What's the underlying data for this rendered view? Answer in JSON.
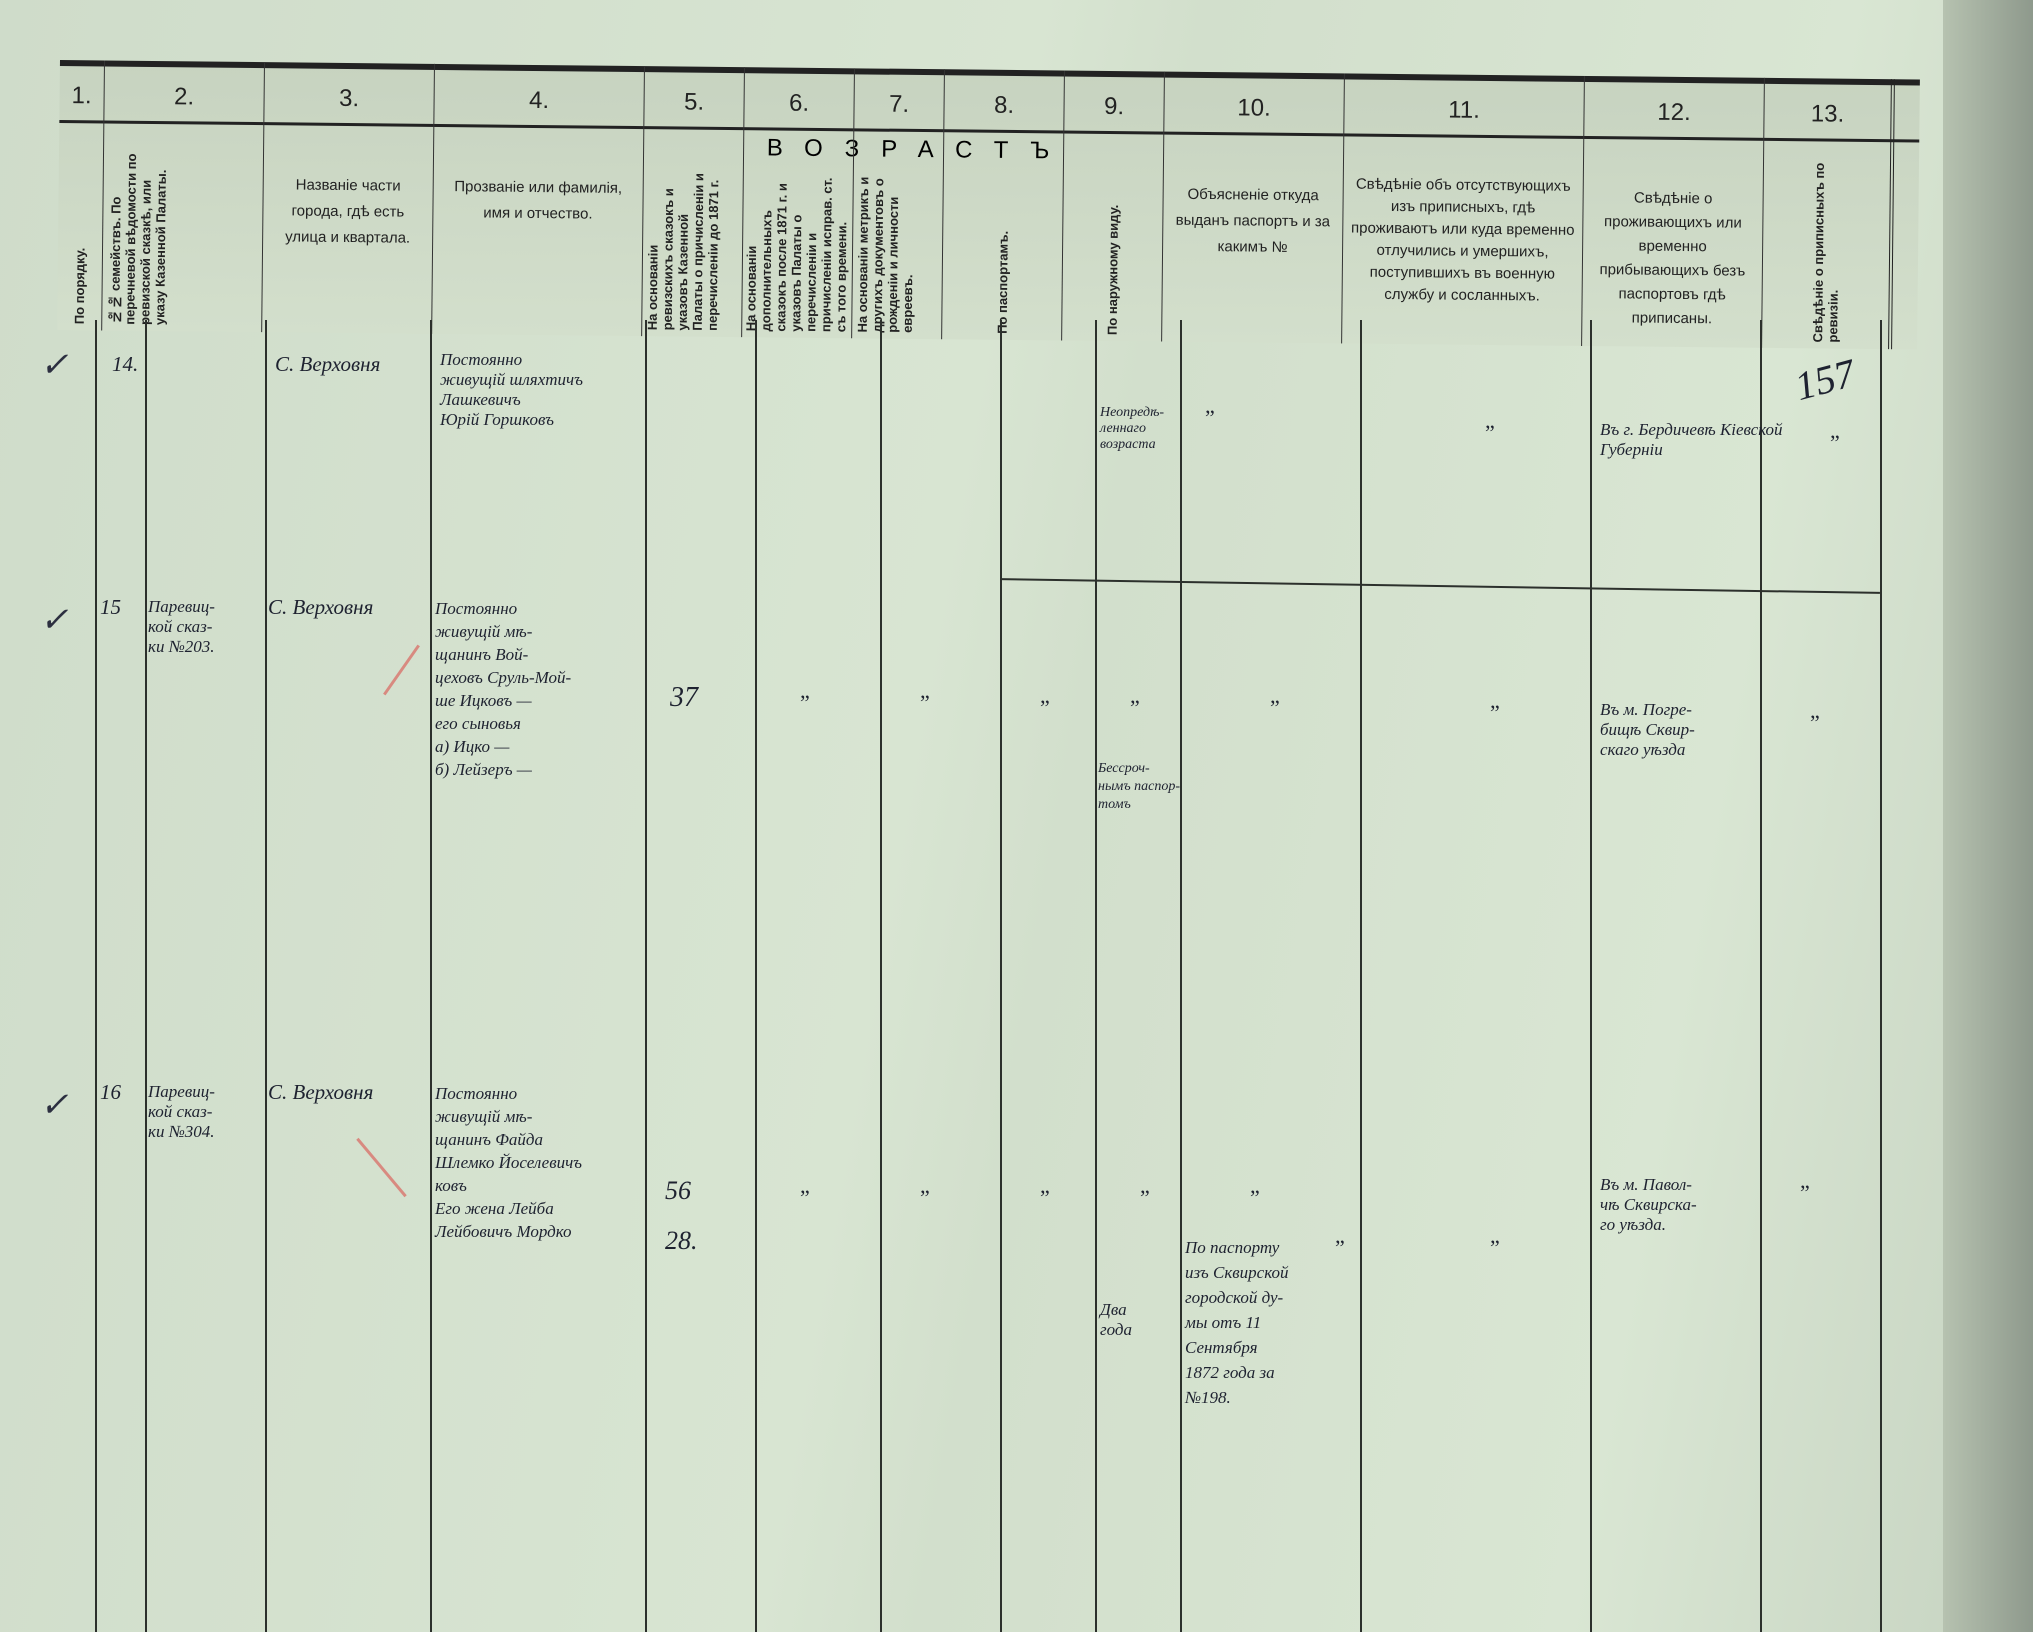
{
  "header": {
    "age_group_title": "ВОЗРАСТЪ",
    "columns": [
      {
        "num": "1.",
        "text": "По порядку."
      },
      {
        "num": "2.",
        "text": "№№ семействъ. По перечневой вѣдомости по ревизской сказкѣ, или указу Казенной Палаты."
      },
      {
        "num": "3.",
        "text": "Названіе части города, гдѣ есть улица и квартала."
      },
      {
        "num": "4.",
        "text": "Прозваніе или фамилія, имя и отчество."
      },
      {
        "num": "5.",
        "text": "На основаніи ревизскихъ сказокъ и указовъ Казенной Палаты о причисленіи и перечисленіи до 1871 г."
      },
      {
        "num": "6.",
        "text": "На основаніи дополнительныхъ сказокъ после 1871 г. и указовъ Палаты о перечисленіи и причисленіи исправ. ст. съ того времени."
      },
      {
        "num": "7.",
        "text": "На основаніи метрикъ и другихъ документовъ о рожденіи и личности евреевъ."
      },
      {
        "num": "8.",
        "text": "По паспортамъ."
      },
      {
        "num": "9.",
        "text": "По наружному виду."
      },
      {
        "num": "10.",
        "text": "Объясненіе откуда выданъ паспортъ и за какимъ №"
      },
      {
        "num": "11.",
        "text": "Свѣдѣніе объ отсутствующихъ изъ приписныхъ, гдѣ проживаютъ или куда временно отлучились и умершихъ, поступившихъ въ военную службу и сосланныхъ."
      },
      {
        "num": "12.",
        "text": "Свѣдѣніе о проживающихъ или временно прибывающихъ безъ паспортовъ гдѣ приписаны."
      },
      {
        "num": "13.",
        "text": "Свѣдѣніе о приписныхъ по ревизіи."
      }
    ]
  },
  "page_number": "157",
  "ditto_mark": "”",
  "rows": [
    {
      "num": "14.",
      "family_ref": "",
      "place": "С. Верховня",
      "name": "Постоянно\nживущій шляхтичъ\nЛашкевичъ\nЮрій Горшковъ",
      "ages": [],
      "appearance": "Неопредѣ-\nленнаго\nвозраста",
      "residence": "Въ г. Бердичевѣ Кіевской\nГуберніи"
    },
    {
      "num": "15",
      "family_ref": "Паревиц-\nкой сказ-\nки №203.",
      "place": "С. Верховня",
      "name": "Постоянно\nживущій мѣ-\nщанинъ Вой-\nцеховъ Сруль-Мой-\nше Ицковъ —\nего сыновья\nа) Ицко —\nб) Лейзеръ —",
      "ages": [
        "37"
      ],
      "appearance": "Бессроч-\nнымъ паспор-\nтомъ",
      "residence": "Въ м. Погре-\nбищѣ Сквир-\nскаго уѣзда"
    },
    {
      "num": "16",
      "family_ref": "Паревиц-\nкой сказ-\nки №304.",
      "place": "С. Верховня",
      "name": "Постоянно\nживущій мѣ-\nщанинъ Файда\nШлемко Йоселевичъ\nковъ\nЕго жена Лейба\nЛейбовичъ Мордко",
      "ages": [
        "56",
        "28."
      ],
      "appearance": "Два\nгода",
      "passport": "По паспорту\nизъ Сквирской\nгородской ду-\nмы отъ 11\nСентября\n1872 года за\n№198.",
      "residence": "Въ м. Павол-\nчѣ Сквирска-\nго уѣзда."
    }
  ]
}
